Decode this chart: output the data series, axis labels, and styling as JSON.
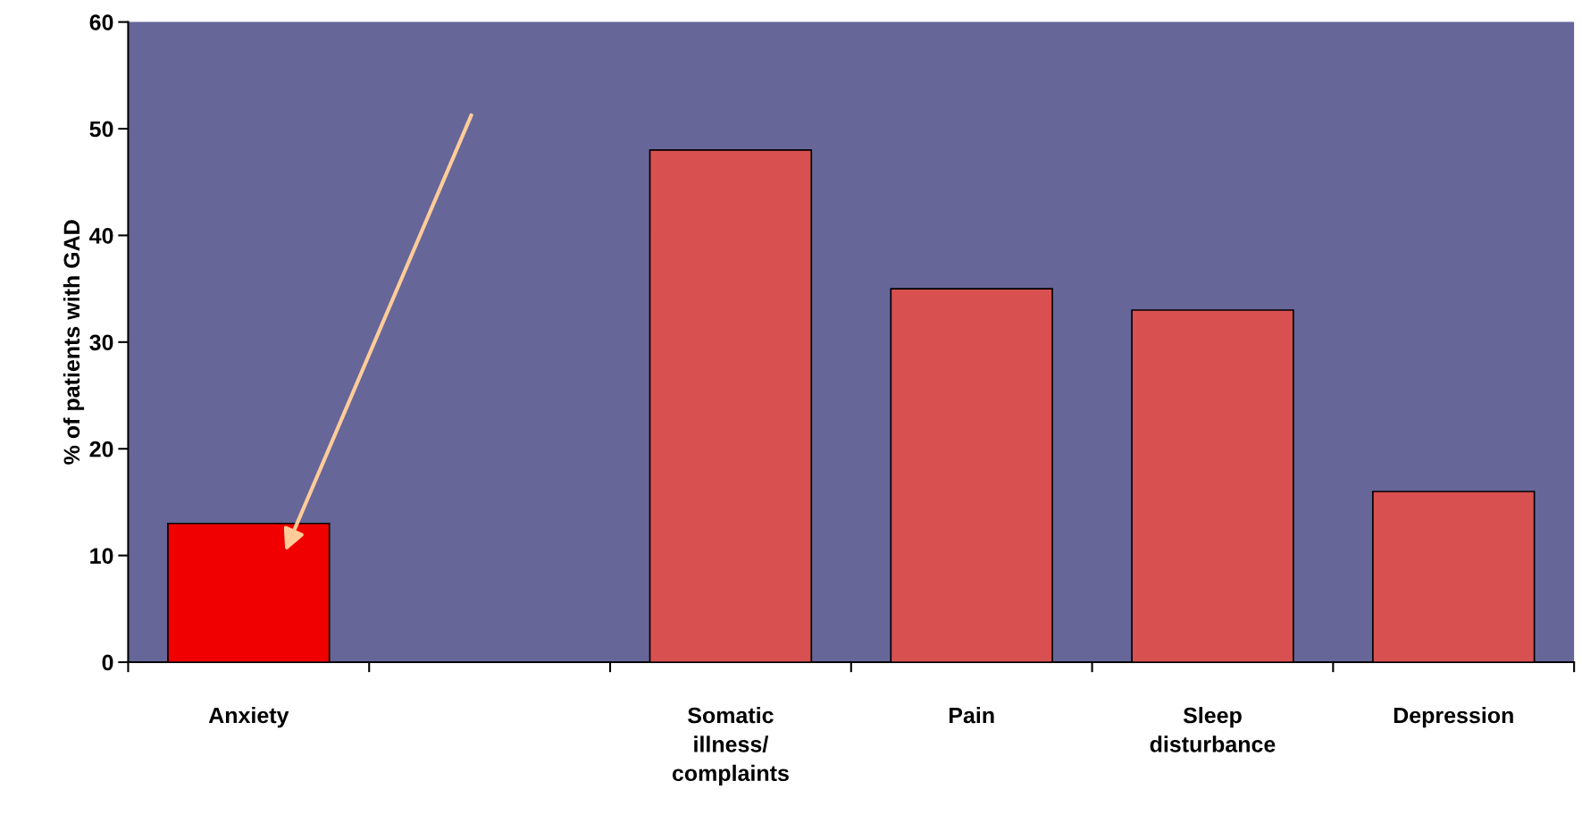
{
  "chart_data": {
    "type": "bar",
    "ylabel": "% of patients with GAD",
    "categories": [
      "Anxiety",
      null,
      "Somatic\nillness/\ncomplaints",
      "Pain",
      "Sleep\ndisturbance",
      "Depression"
    ],
    "values": [
      13,
      null,
      48,
      35,
      33,
      16
    ],
    "colors": [
      "#f00000",
      "#d95050",
      "#d95050",
      "#d95050",
      "#d95050",
      "#d95050"
    ],
    "ylim": [
      0,
      60
    ],
    "yticks": [
      0,
      10,
      20,
      30,
      40,
      50,
      60
    ],
    "grid": false,
    "legend": false
  }
}
